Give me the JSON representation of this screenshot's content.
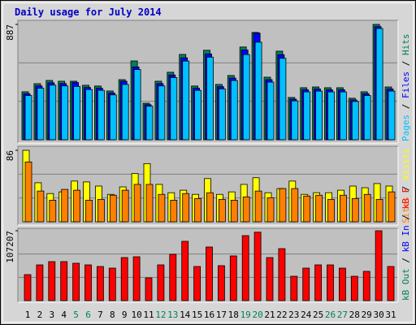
{
  "title": "Daily usage for July 2014",
  "legend_separator": " / ",
  "chart_data": [
    {
      "type": "bar",
      "ylim": [
        0,
        887
      ],
      "yticks": [
        887
      ],
      "series": [
        {
          "name": "Hits",
          "color": "#00805c",
          "values": [
            369,
            431,
            456,
            450,
            450,
            419,
            413,
            375,
            462,
            606,
            281,
            450,
            519,
            656,
            413,
            688,
            425,
            494,
            713,
            825,
            481,
            681,
            325,
            400,
            406,
            400,
            400,
            319,
            369,
            887,
            406
          ]
        },
        {
          "name": "Files",
          "color": "#0000ff",
          "values": [
            354,
            414,
            438,
            432,
            440,
            402,
            396,
            360,
            450,
            560,
            270,
            432,
            498,
            630,
            396,
            660,
            408,
            474,
            690,
            820,
            462,
            654,
            312,
            384,
            390,
            384,
            384,
            306,
            354,
            870,
            390
          ]
        },
        {
          "name": "Pages",
          "color": "#00c0ff",
          "values": [
            340,
            396,
            420,
            414,
            410,
            386,
            380,
            345,
            425,
            540,
            258,
            414,
            478,
            605,
            380,
            635,
            391,
            455,
            655,
            750,
            443,
            626,
            299,
            368,
            374,
            368,
            368,
            294,
            340,
            855,
            374
          ]
        }
      ]
    },
    {
      "type": "bar",
      "ylim": [
        0,
        86
      ],
      "yticks": [
        86
      ],
      "series": [
        {
          "name": "Visits",
          "color": "#ffff00",
          "values": [
            86,
            47,
            34,
            36,
            49,
            48,
            43,
            33,
            42,
            58,
            70,
            45,
            35,
            38,
            33,
            52,
            33,
            36,
            45,
            53,
            35,
            40,
            49,
            33,
            35,
            35,
            38,
            43,
            41,
            46,
            43
          ]
        },
        {
          "name": "Sites",
          "color": "#ff8000",
          "values": [
            72,
            37,
            26,
            39,
            38,
            26,
            27,
            32,
            38,
            45,
            45,
            33,
            26,
            34,
            28,
            35,
            27,
            26,
            30,
            37,
            29,
            40,
            40,
            31,
            32,
            27,
            32,
            28,
            33,
            27,
            36
          ]
        }
      ]
    },
    {
      "type": "bar",
      "ylim": [
        0,
        107207
      ],
      "yticks": [
        107207
      ],
      "categories": [
        "1",
        "2",
        "3",
        "4",
        "5",
        "6",
        "7",
        "8",
        "9",
        "10",
        "11",
        "12",
        "13",
        "14",
        "15",
        "16",
        "17",
        "18",
        "19",
        "20",
        "21",
        "22",
        "23",
        "24",
        "25",
        "26",
        "27",
        "28",
        "29",
        "30",
        "31"
      ],
      "category_colors": [
        "#000000",
        "#000000",
        "#000000",
        "#000000",
        "#00805c",
        "#00805c",
        "#000000",
        "#000000",
        "#000000",
        "#000000",
        "#000000",
        "#00805c",
        "#00805c",
        "#000000",
        "#000000",
        "#000000",
        "#000000",
        "#000000",
        "#00805c",
        "#00805c",
        "#000000",
        "#000000",
        "#000000",
        "#000000",
        "#000000",
        "#00805c",
        "#00805c",
        "#000000",
        "#000000",
        "#000000",
        "#000000"
      ],
      "series": [
        {
          "name": "kB F",
          "color": "#ff0000",
          "values": [
            39890,
            54850,
            59838,
            59838,
            57344,
            54850,
            52357,
            49864,
            66070,
            67316,
            34905,
            54850,
            71056,
            91002,
            52357,
            82276,
            53604,
            68563,
            99728,
            105000,
            66070,
            79782,
            37398,
            49864,
            54850,
            54850,
            49864,
            37398,
            44878,
            107207,
            52357
          ]
        },
        {
          "name": "kB In",
          "color": "#0000ff",
          "values": [
            null,
            null,
            null,
            null,
            null,
            null,
            null,
            null,
            null,
            null,
            null,
            null,
            null,
            null,
            null,
            null,
            null,
            null,
            null,
            null,
            null,
            null,
            null,
            null,
            null,
            null,
            null,
            null,
            null,
            null,
            null
          ]
        },
        {
          "name": "kB Out",
          "color": "#00805c",
          "values": [
            null,
            null,
            null,
            null,
            null,
            null,
            null,
            null,
            null,
            null,
            null,
            null,
            null,
            null,
            null,
            null,
            null,
            null,
            null,
            null,
            null,
            null,
            null,
            null,
            null,
            null,
            null,
            null,
            null,
            null,
            null
          ]
        }
      ]
    }
  ]
}
